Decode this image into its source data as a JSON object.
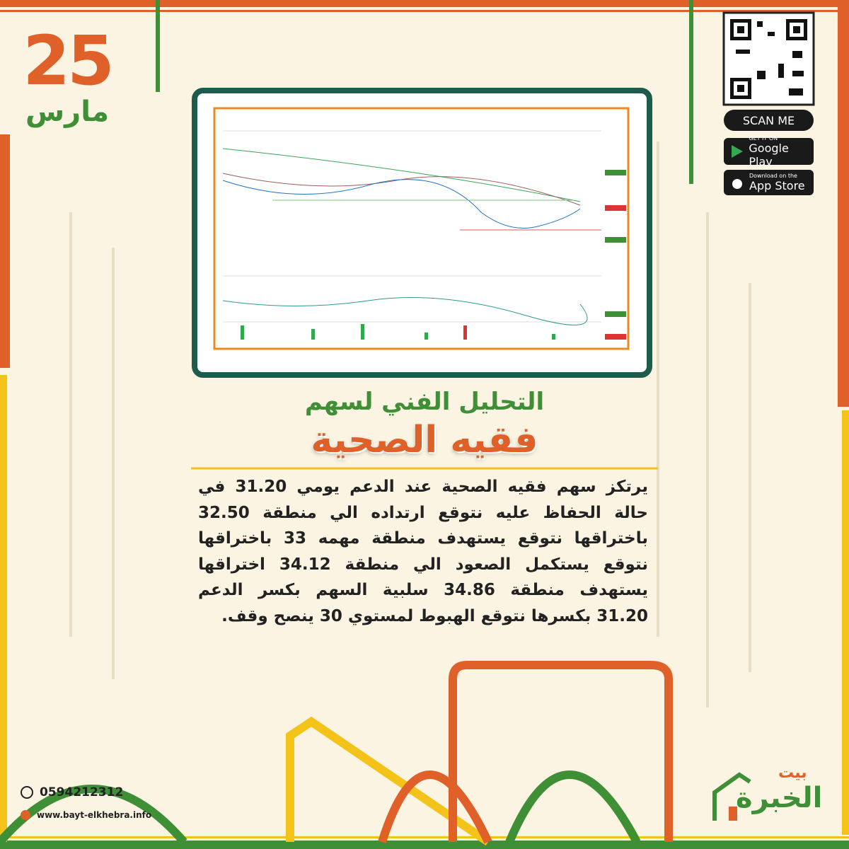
{
  "date": {
    "day": "25",
    "month": "مارس"
  },
  "heading": {
    "subtitle": "التحليل الفني لسهم",
    "title": "فقيه الصحية"
  },
  "body": {
    "lines": [
      "يرتكز سهم فقيه الصحية عند الدعم يومي 31.20 في",
      "حالة الحفاظ عليه نتوقع ارتداده الي منطقة 32.50",
      "باختراقها نتوقع يستهدف منطقة مهمه 33 باختراقها",
      "نتوقع يستكمل الصعود الي منطقة 34.12 اختراقها",
      "يستهدف منطقة 34.86 سلبية السهم بكسر الدعم",
      "31.20 بكسرها نتوقع الهبوط لمستوي 30 ينصح وقف."
    ]
  },
  "apps": {
    "scan": "SCAN ME",
    "google_small": "GET IT ON",
    "google": "Google Play",
    "apple_small": "Download on the",
    "apple": "App Store"
  },
  "contact": {
    "phone": "0594212312",
    "website": "www.bayt-elkhebra.info"
  },
  "logo": {
    "top": "بيت",
    "main": "الخبرة"
  }
}
